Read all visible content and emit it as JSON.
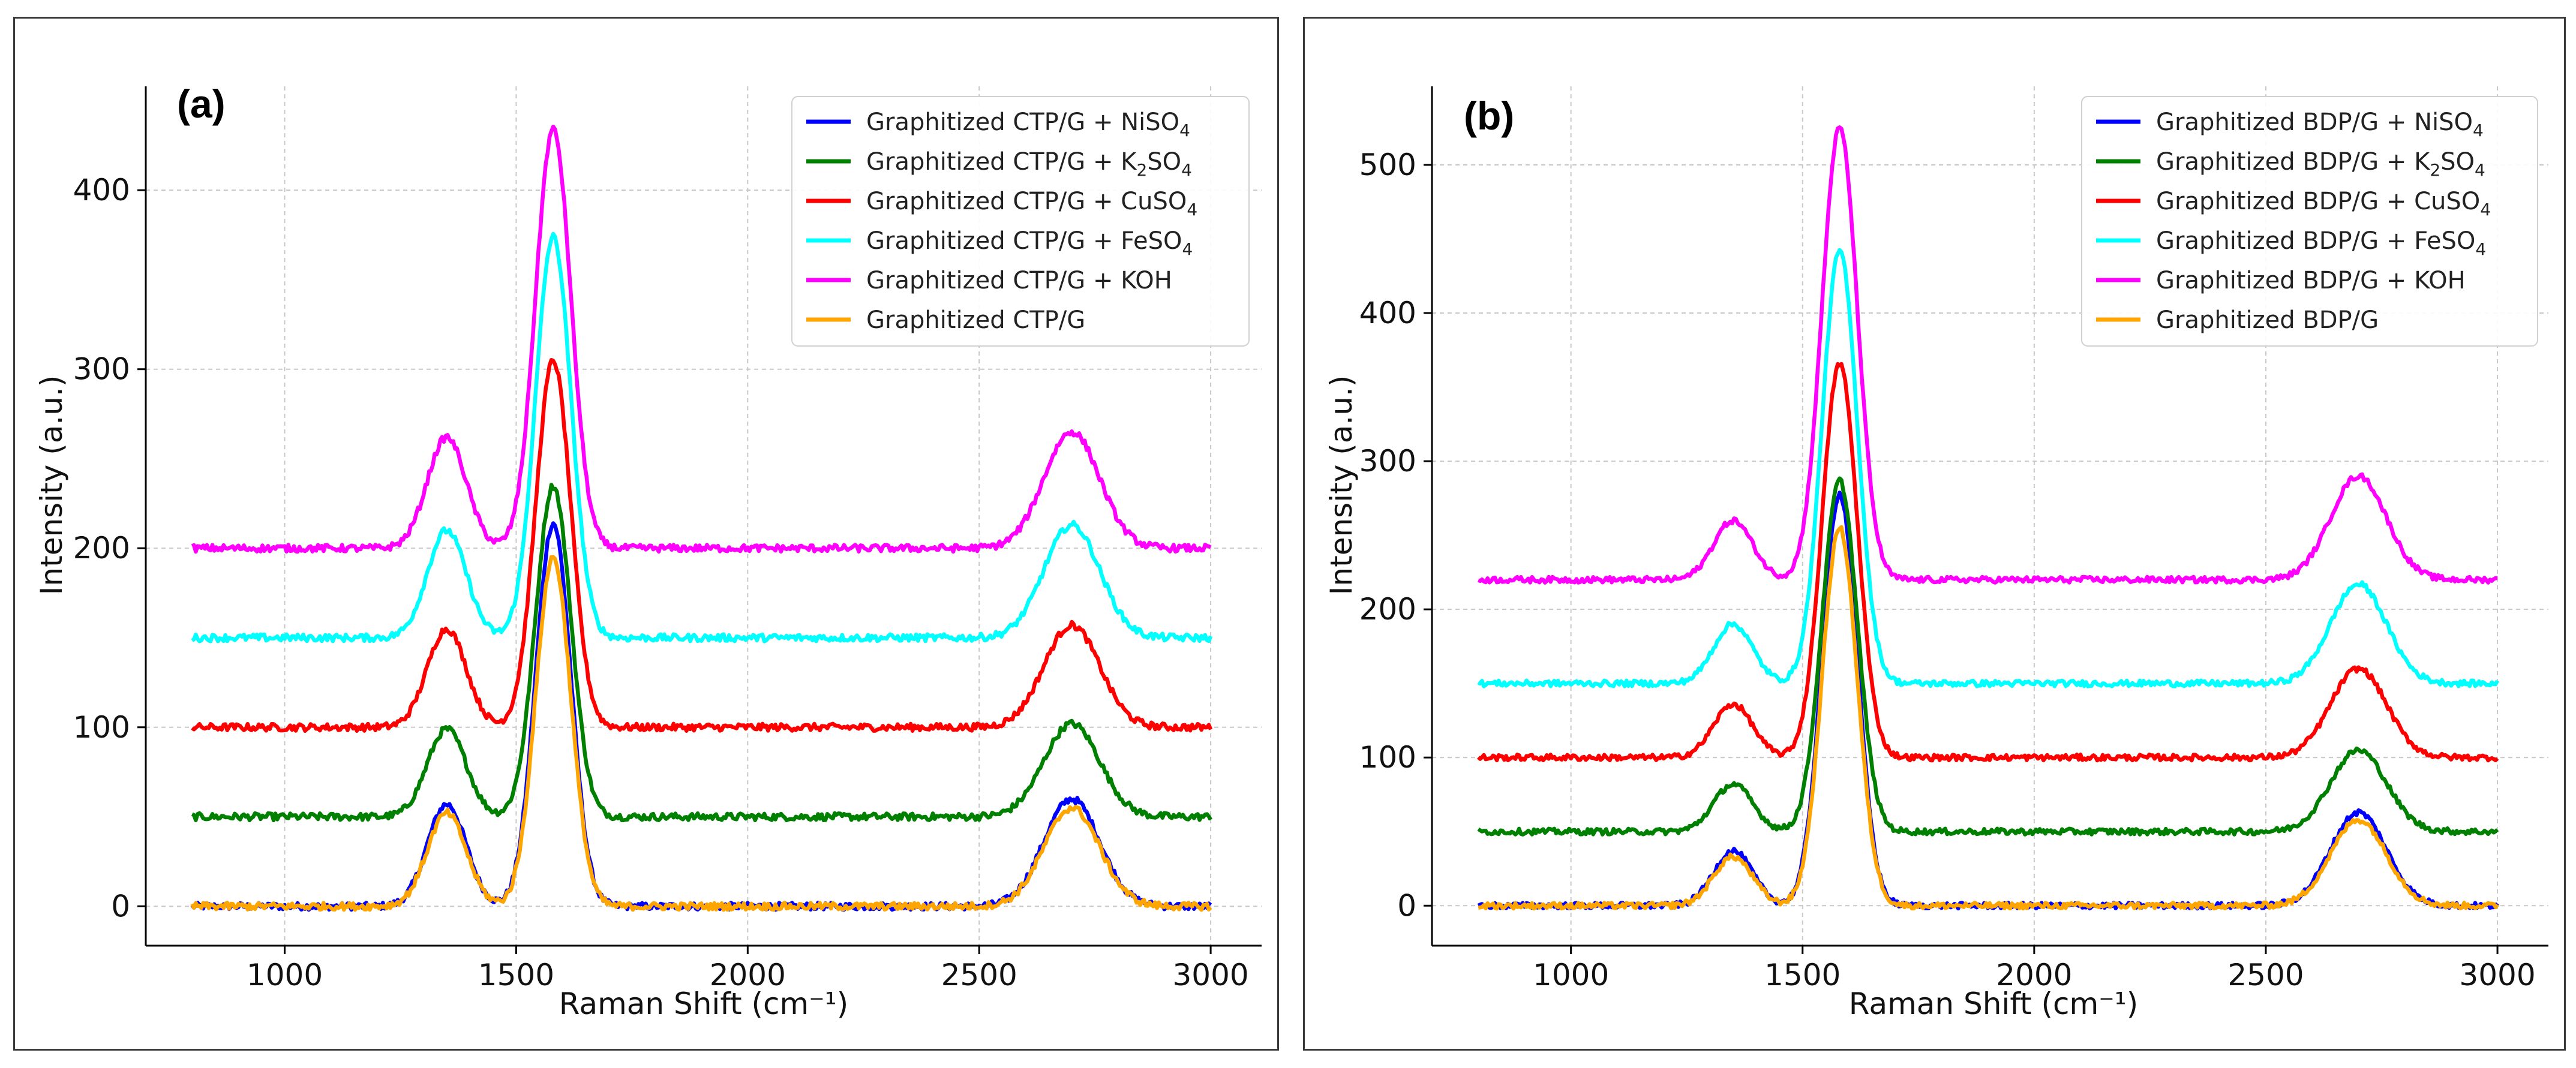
{
  "chart_data": [
    {
      "type": "line",
      "panel_label": "(a)",
      "xlabel": "Raman Shift (cm⁻¹)",
      "ylabel": "Intensity (a.u.)",
      "xlim": [
        700,
        3110
      ],
      "ylim": [
        -22,
        458
      ],
      "xticks": [
        1000,
        1500,
        2000,
        2500,
        3000
      ],
      "yticks": [
        0,
        100,
        200,
        300,
        400
      ],
      "grid": true,
      "legend_position": "top-right",
      "series": [
        {
          "name": "Graphitized CTP/G + NiSO4",
          "name_parts": [
            "Graphitized CTP/G + NiSO",
            "4",
            ""
          ],
          "color": "#0000ff",
          "baseline": 0,
          "peaks": [
            [
              1350,
              57,
              42
            ],
            [
              1580,
              214,
              38
            ],
            [
              2700,
              60,
              60
            ]
          ]
        },
        {
          "name": "Graphitized CTP/G + K2SO4",
          "name_parts": [
            "Graphitized CTP/G + K",
            "2",
            "SO",
            "4"
          ],
          "color": "#008000",
          "baseline": 50,
          "peaks": [
            [
              1350,
              49,
              42
            ],
            [
              1580,
              185,
              38
            ],
            [
              2700,
              52,
              60
            ]
          ]
        },
        {
          "name": "Graphitized CTP/G + CuSO4",
          "name_parts": [
            "Graphitized CTP/G + CuSO",
            "4",
            ""
          ],
          "color": "#ff0000",
          "baseline": 100,
          "peaks": [
            [
              1350,
              55,
              42
            ],
            [
              1580,
              205,
              38
            ],
            [
              2700,
              57,
              60
            ]
          ]
        },
        {
          "name": "Graphitized CTP/G + FeSO4",
          "name_parts": [
            "Graphitized CTP/G + FeSO",
            "4",
            ""
          ],
          "color": "#00ffff",
          "baseline": 150,
          "peaks": [
            [
              1350,
              60,
              42
            ],
            [
              1580,
              224,
              38
            ],
            [
              2700,
              63,
              60
            ]
          ]
        },
        {
          "name": "Graphitized CTP/G + KOH",
          "name_parts": [
            "Graphitized CTP/G + KOH"
          ],
          "color": "#ff00ff",
          "baseline": 200,
          "peaks": [
            [
              1350,
              62,
              42
            ],
            [
              1580,
              234,
              38
            ],
            [
              2700,
              65,
              60
            ]
          ]
        },
        {
          "name": "Graphitized CTP/G",
          "name_parts": [
            "Graphitized CTP/G"
          ],
          "color": "#ffa500",
          "baseline": 0,
          "peaks": [
            [
              1350,
              52,
              42
            ],
            [
              1580,
              195,
              38
            ],
            [
              2700,
              55,
              60
            ]
          ]
        }
      ]
    },
    {
      "type": "line",
      "panel_label": "(b)",
      "xlabel": "Raman Shift (cm⁻¹)",
      "ylabel": "Intensity (a.u.)",
      "xlim": [
        700,
        3110
      ],
      "ylim": [
        -27,
        553
      ],
      "xticks": [
        1000,
        1500,
        2000,
        2500,
        3000
      ],
      "yticks": [
        0,
        100,
        200,
        300,
        400,
        500
      ],
      "grid": true,
      "legend_position": "top-right",
      "series": [
        {
          "name": "Graphitized BDP/G + NiSO4",
          "name_parts": [
            "Graphitized BDP/G + NiSO",
            "4",
            ""
          ],
          "color": "#0000ff",
          "baseline": 0,
          "peaks": [
            [
              1350,
              37,
              42
            ],
            [
              1580,
              278,
              38
            ],
            [
              2700,
              63,
              60
            ]
          ]
        },
        {
          "name": "Graphitized BDP/G + K2SO4",
          "name_parts": [
            "Graphitized BDP/G + K",
            "2",
            "SO",
            "4"
          ],
          "color": "#008000",
          "baseline": 50,
          "peaks": [
            [
              1350,
              32,
              42
            ],
            [
              1580,
              237,
              38
            ],
            [
              2700,
              55,
              60
            ]
          ]
        },
        {
          "name": "Graphitized BDP/G + CuSO4",
          "name_parts": [
            "Graphitized BDP/G + CuSO",
            "4",
            ""
          ],
          "color": "#ff0000",
          "baseline": 100,
          "peaks": [
            [
              1350,
              36,
              42
            ],
            [
              1580,
              266,
              38
            ],
            [
              2700,
              60,
              60
            ]
          ]
        },
        {
          "name": "Graphitized BDP/G + FeSO4",
          "name_parts": [
            "Graphitized BDP/G + FeSO",
            "4",
            ""
          ],
          "color": "#00ffff",
          "baseline": 150,
          "peaks": [
            [
              1350,
              40,
              42
            ],
            [
              1580,
              292,
              38
            ],
            [
              2700,
              67,
              60
            ]
          ]
        },
        {
          "name": "Graphitized BDP/G + KOH",
          "name_parts": [
            "Graphitized BDP/G + KOH"
          ],
          "color": "#ff00ff",
          "baseline": 220,
          "peaks": [
            [
              1350,
              40,
              42
            ],
            [
              1580,
              305,
              38
            ],
            [
              2700,
              70,
              60
            ]
          ]
        },
        {
          "name": "Graphitized BDP/G",
          "name_parts": [
            "Graphitized BDP/G"
          ],
          "color": "#ffa500",
          "baseline": 0,
          "peaks": [
            [
              1350,
              33,
              42
            ],
            [
              1580,
              255,
              38
            ],
            [
              2700,
              58,
              60
            ]
          ]
        }
      ]
    }
  ]
}
